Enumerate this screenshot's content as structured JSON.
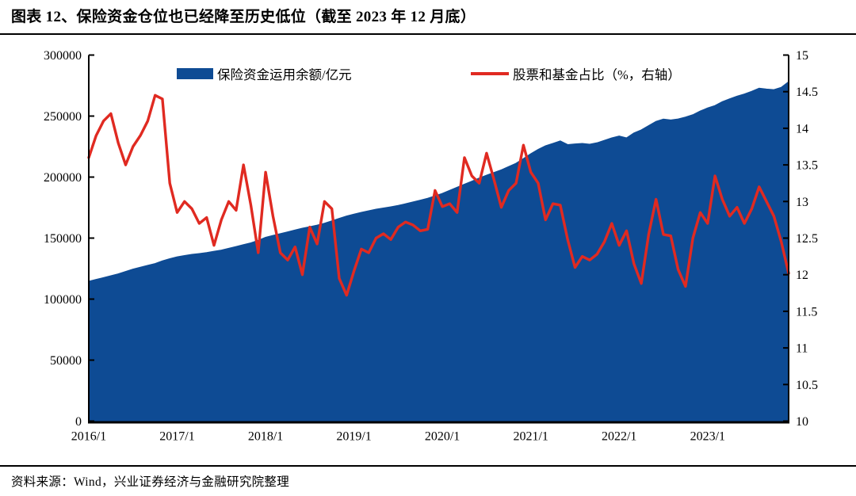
{
  "title": "图表 12、保险资金仓位也已经降至历史低位（截至 2023 年 12 月底）",
  "source": "资料来源：Wind，兴业证券经济与金融研究院整理",
  "colors": {
    "area": "#0E4B94",
    "line": "#E02A21",
    "axis": "#000000",
    "text": "#000000"
  },
  "chart_data": {
    "type": "area+line",
    "title": "保险资金仓位也已经降至历史低位（截至 2023 年 12 月底）",
    "x_start": "2016/1",
    "x_end": "2023/12",
    "x_frequency": "monthly",
    "x_tick_labels": [
      "2016/1",
      "2017/1",
      "2018/1",
      "2019/1",
      "2020/1",
      "2021/1",
      "2022/1",
      "2023/1"
    ],
    "left_axis": {
      "min": 0,
      "max": 300000,
      "ticks": [
        0,
        50000,
        100000,
        150000,
        200000,
        250000,
        300000
      ],
      "tick_labels": [
        "0",
        "50000",
        "100000",
        "150000",
        "200000",
        "250000",
        "300000"
      ]
    },
    "right_axis": {
      "min": 10,
      "max": 15,
      "ticks": [
        10,
        10.5,
        11,
        11.5,
        12,
        12.5,
        13,
        13.5,
        14,
        14.5,
        15
      ],
      "tick_labels": [
        "10",
        "10.5",
        "11",
        "11.5",
        "12",
        "12.5",
        "13",
        "13.5",
        "14",
        "14.5",
        "15"
      ]
    },
    "legend": [
      {
        "label": "保险资金运用余额/亿元",
        "type": "area"
      },
      {
        "label": "股票和基金占比（%，右轴）",
        "type": "line"
      }
    ],
    "series": [
      {
        "name": "保险资金运用余额/亿元",
        "axis": "left",
        "type": "area",
        "values": [
          114500,
          116000,
          117500,
          119000,
          120500,
          122500,
          124500,
          126000,
          127500,
          129000,
          131200,
          133000,
          134500,
          135500,
          136500,
          137200,
          138000,
          139000,
          140000,
          141500,
          143000,
          144500,
          146000,
          148000,
          150500,
          152000,
          153500,
          155000,
          156500,
          158000,
          159200,
          160500,
          162000,
          164000,
          166000,
          168000,
          169500,
          171000,
          172300,
          173500,
          174500,
          175500,
          176600,
          178000,
          179500,
          181000,
          182500,
          184500,
          186500,
          189000,
          191500,
          194000,
          196500,
          199000,
          201400,
          203600,
          205800,
          208500,
          211200,
          215000,
          219000,
          222500,
          225500,
          227500,
          229500,
          226500,
          227000,
          227500,
          226800,
          228000,
          230000,
          232000,
          233500,
          232000,
          236000,
          238500,
          242000,
          245500,
          247400,
          246700,
          247500,
          249000,
          251000,
          254000,
          256500,
          258500,
          261700,
          264000,
          266200,
          268000,
          270100,
          272700,
          272000,
          271500,
          273400,
          278000
        ]
      },
      {
        "name": "股票和基金占比（%，右轴）",
        "axis": "right",
        "type": "line",
        "values": [
          13.6,
          13.9,
          14.1,
          14.2,
          13.8,
          13.5,
          13.75,
          13.9,
          14.1,
          14.45,
          14.4,
          13.25,
          12.85,
          13.0,
          12.9,
          12.7,
          12.78,
          12.4,
          12.75,
          13.0,
          12.88,
          13.5,
          12.95,
          12.3,
          13.4,
          12.8,
          12.3,
          12.2,
          12.38,
          12.0,
          12.65,
          12.42,
          13.0,
          12.9,
          11.95,
          11.72,
          12.05,
          12.35,
          12.3,
          12.5,
          12.56,
          12.48,
          12.65,
          12.72,
          12.68,
          12.6,
          12.62,
          13.15,
          12.93,
          12.97,
          12.85,
          13.6,
          13.35,
          13.25,
          13.66,
          13.3,
          12.92,
          13.15,
          13.25,
          13.77,
          13.4,
          13.25,
          12.75,
          12.97,
          12.95,
          12.48,
          12.1,
          12.25,
          12.2,
          12.28,
          12.45,
          12.7,
          12.4,
          12.6,
          12.15,
          11.88,
          12.55,
          13.03,
          12.55,
          12.53,
          12.07,
          11.84,
          12.5,
          12.85,
          12.7,
          13.35,
          13.03,
          12.8,
          12.92,
          12.7,
          12.9,
          13.2,
          13.0,
          12.8,
          12.45,
          12.02
        ]
      }
    ],
    "layout_hints": {
      "grid": false,
      "legend_position": "top-center-inside",
      "left_axis_series": "area",
      "right_axis_series": "line"
    }
  }
}
